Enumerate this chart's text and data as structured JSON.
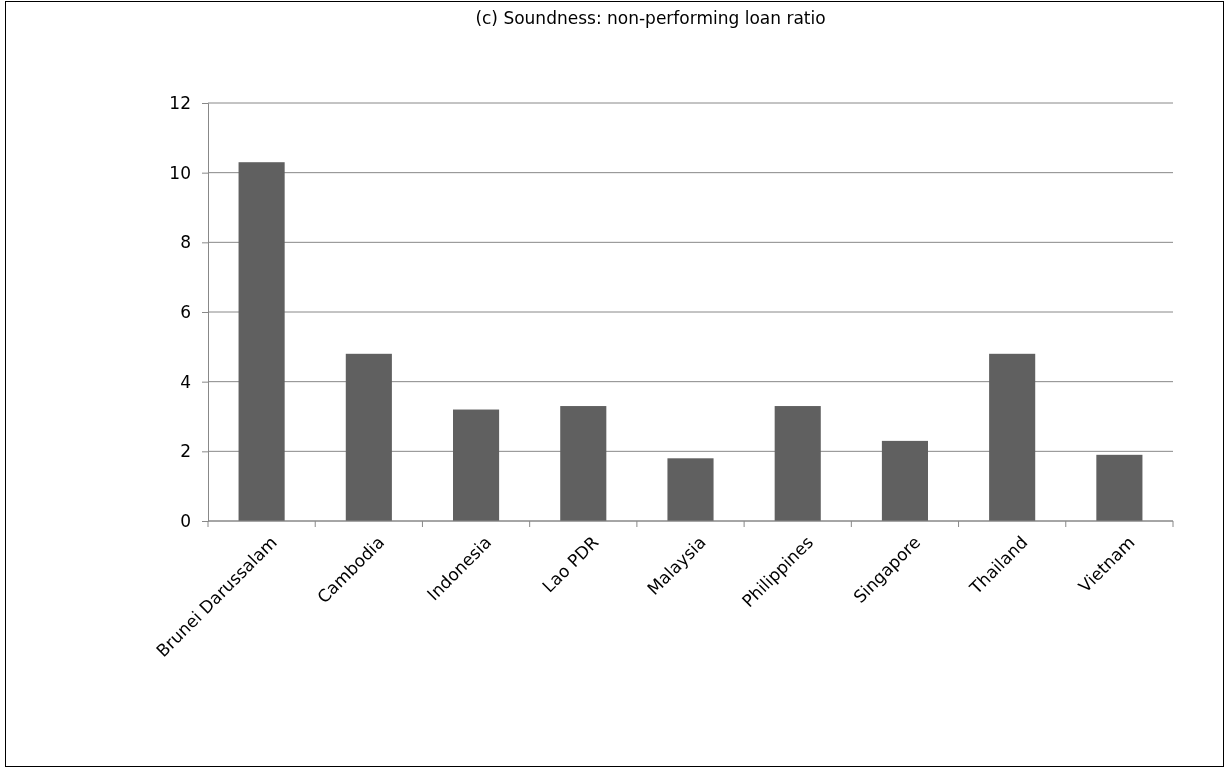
{
  "chart_data": {
    "type": "bar",
    "title": "(c) Soundness: non-performing loan ratio",
    "categories": [
      "Brunei Darussalam",
      "Cambodia",
      "Indonesia",
      "Lao PDR",
      "Malaysia",
      "Philippines",
      "Singapore",
      "Thailand",
      "Vietnam"
    ],
    "values": [
      10.3,
      4.8,
      3.2,
      3.3,
      1.8,
      3.3,
      2.3,
      4.8,
      1.9
    ],
    "color": "#606060",
    "ylim": [
      0,
      12
    ],
    "yticks": [
      0,
      2,
      4,
      6,
      8,
      10,
      12
    ],
    "grid": "y"
  }
}
